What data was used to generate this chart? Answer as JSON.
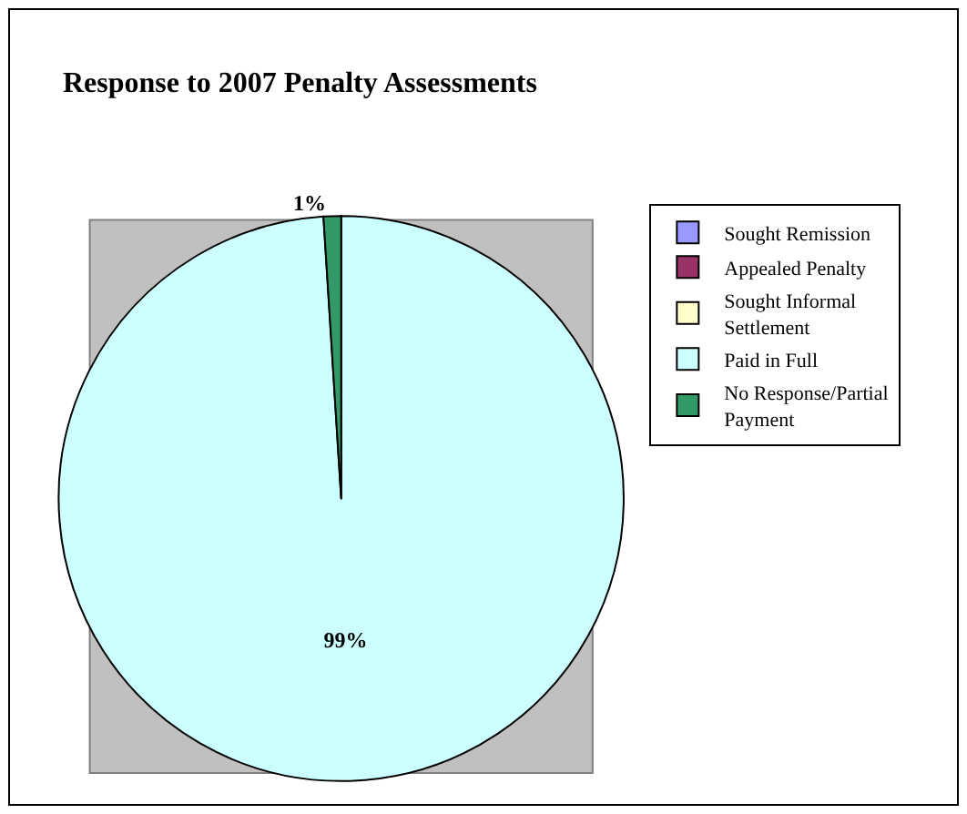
{
  "chart_data": {
    "type": "pie",
    "title": "Response to 2007 Penalty Assessments",
    "categories": [
      "Sought Remission",
      "Appealed Penalty",
      "Sought Informal Settlement",
      "Paid in Full",
      "No Response/Partial Payment"
    ],
    "values": [
      0,
      0,
      0,
      99,
      1
    ],
    "colors": [
      "#9999ff",
      "#993366",
      "#ffffcc",
      "#ccffff",
      "#339966"
    ],
    "value_labels": [
      null,
      null,
      null,
      "99%",
      "1%"
    ],
    "legend": "right"
  }
}
